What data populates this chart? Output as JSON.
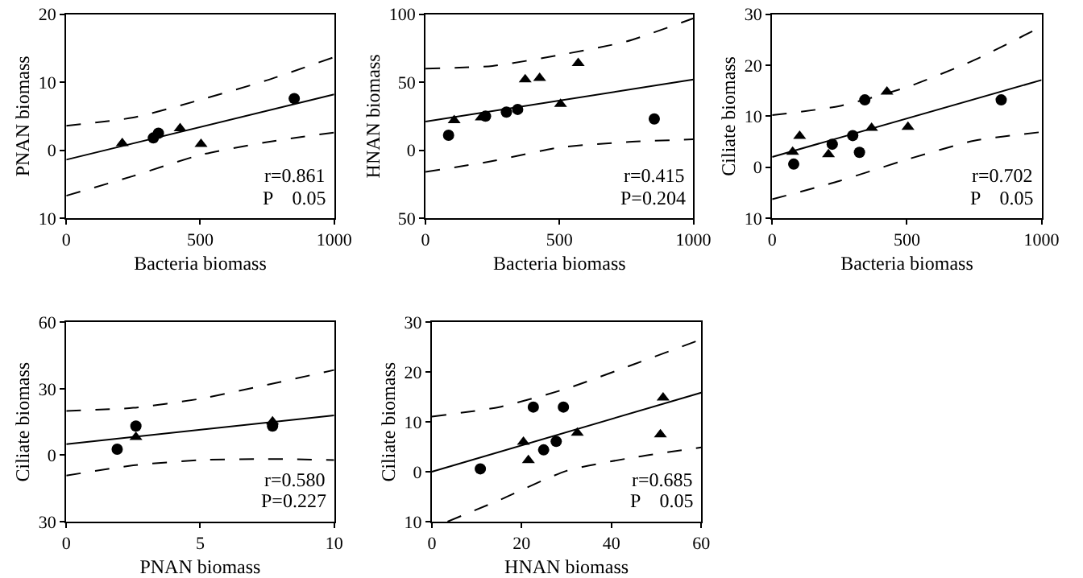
{
  "chart_data": [
    {
      "type": "scatter",
      "xlabel": "Bacteria biomass",
      "ylabel": "PNAN biomass",
      "xlim": [
        0,
        1000
      ],
      "xticks": [
        0,
        500,
        1000
      ],
      "ylim": [
        -10,
        20
      ],
      "yticks": [
        {
          "value": -10,
          "label": "10"
        },
        0,
        10,
        20
      ],
      "annotations": [
        "r=0.861",
        "P    0.05"
      ],
      "series": [
        {
          "type": "scatter",
          "marker": "circle",
          "color": "#000000",
          "x": [
            325,
            344,
            851
          ],
          "values": [
            1.8,
            2.5,
            7.6
          ]
        },
        {
          "type": "scatter",
          "marker": "triangle",
          "color": "#000000",
          "x": [
            209,
            425,
            503
          ],
          "values": [
            1.0,
            3.2,
            0.9
          ]
        },
        {
          "type": "line",
          "line_style": "solid",
          "color": "#000000",
          "x": [
            0,
            1000
          ],
          "values": [
            -1.4,
            8.2
          ]
        },
        {
          "type": "line",
          "line_style": "dashed",
          "color": "#000000",
          "x": [
            0,
            250,
            500,
            750,
            1000
          ],
          "values": [
            3.6,
            4.8,
            7.4,
            10.3,
            13.7
          ]
        },
        {
          "type": "line",
          "line_style": "dashed",
          "color": "#000000",
          "x": [
            0,
            250,
            500,
            750,
            1000
          ],
          "values": [
            -6.7,
            -3.8,
            -0.7,
            1.2,
            2.6
          ]
        }
      ]
    },
    {
      "type": "scatter",
      "xlabel": "Bacteria biomass",
      "ylabel": "HNAN biomass",
      "xlim": [
        0,
        1000
      ],
      "xticks": [
        0,
        500,
        1000
      ],
      "ylim": [
        -50,
        100
      ],
      "yticks": [
        {
          "value": -50,
          "label": "50"
        },
        0,
        50,
        100
      ],
      "annotations": [
        "r=0.415",
        "P=0.204"
      ],
      "series": [
        {
          "type": "scatter",
          "marker": "circle",
          "color": "#000000",
          "x": [
            86,
            224,
            302,
            344,
            854
          ],
          "values": [
            11,
            25,
            28,
            30,
            23
          ]
        },
        {
          "type": "scatter",
          "marker": "triangle",
          "color": "#000000",
          "x": [
            107,
            208,
            372,
            426,
            504,
            570
          ],
          "values": [
            22,
            24,
            52,
            53,
            34,
            64
          ]
        },
        {
          "type": "line",
          "line_style": "solid",
          "color": "#000000",
          "x": [
            0,
            1000
          ],
          "values": [
            21,
            52
          ]
        },
        {
          "type": "line",
          "line_style": "dashed",
          "color": "#000000",
          "x": [
            0,
            250,
            500,
            750,
            1000
          ],
          "values": [
            60,
            62,
            70,
            80,
            97
          ]
        },
        {
          "type": "line",
          "line_style": "dashed",
          "color": "#000000",
          "x": [
            0,
            250,
            500,
            750,
            1000
          ],
          "values": [
            -16,
            -8,
            2,
            6,
            8
          ]
        }
      ]
    },
    {
      "type": "scatter",
      "xlabel": "Bacteria biomass",
      "ylabel": "Ciliate biomass",
      "xlim": [
        0,
        1000
      ],
      "xticks": [
        0,
        500,
        1000
      ],
      "ylim": [
        -10,
        30
      ],
      "yticks": [
        {
          "value": -10,
          "label": "10"
        },
        0,
        10,
        20,
        30
      ],
      "annotations": [
        "r=0.702",
        "P    0.05"
      ],
      "series": [
        {
          "type": "scatter",
          "marker": "circle",
          "color": "#000000",
          "x": [
            80,
            223,
            299,
            324,
            344,
            850
          ],
          "values": [
            0.6,
            4.5,
            6.2,
            2.9,
            13.2,
            13.2
          ]
        },
        {
          "type": "scatter",
          "marker": "triangle",
          "color": "#000000",
          "x": [
            76,
            102,
            209,
            369,
            426,
            504
          ],
          "values": [
            3.0,
            6.1,
            2.5,
            7.7,
            14.8,
            7.9
          ]
        },
        {
          "type": "line",
          "line_style": "solid",
          "color": "#000000",
          "x": [
            0,
            1000
          ],
          "values": [
            2.0,
            17.1
          ]
        },
        {
          "type": "line",
          "line_style": "dashed",
          "color": "#000000",
          "x": [
            0,
            250,
            500,
            750,
            1000
          ],
          "values": [
            10.2,
            12,
            15.7,
            21,
            27.6
          ]
        },
        {
          "type": "line",
          "line_style": "dashed",
          "color": "#000000",
          "x": [
            0,
            250,
            500,
            750,
            1000
          ],
          "values": [
            -6.3,
            -2.7,
            1.5,
            5.2,
            6.9
          ]
        }
      ]
    },
    {
      "type": "scatter",
      "xlabel": "PNAN biomass",
      "ylabel": "Ciliate biomass",
      "xlim": [
        0,
        10
      ],
      "xticks": [
        0,
        5,
        10
      ],
      "ylim": [
        -30,
        60
      ],
      "yticks": [
        {
          "value": -30,
          "label": "30"
        },
        0,
        30,
        60
      ],
      "annotations": [
        "r=0.580",
        "P=0.227"
      ],
      "series": [
        {
          "type": "scatter",
          "marker": "circle",
          "color": "#000000",
          "x": [
            1.9,
            2.6,
            7.7
          ],
          "values": [
            2.7,
            13.2,
            13.2
          ]
        },
        {
          "type": "scatter",
          "marker": "triangle",
          "color": "#000000",
          "x": [
            2.6,
            7.7
          ],
          "values": [
            8.2,
            15.2
          ]
        },
        {
          "type": "line",
          "line_style": "solid",
          "color": "#000000",
          "x": [
            0,
            10
          ],
          "values": [
            5,
            18
          ]
        },
        {
          "type": "line",
          "line_style": "dashed",
          "color": "#000000",
          "x": [
            0,
            2.5,
            5,
            7.5,
            10
          ],
          "values": [
            20,
            21.4,
            25.5,
            31.8,
            38.5
          ]
        },
        {
          "type": "line",
          "line_style": "dashed",
          "color": "#000000",
          "x": [
            0,
            2.5,
            5,
            7.5,
            10
          ],
          "values": [
            -9.2,
            -4.6,
            -2.2,
            -1.7,
            -2.2
          ]
        }
      ]
    },
    {
      "type": "scatter",
      "xlabel": "HNAN biomass",
      "ylabel": "Ciliate biomass",
      "xlim": [
        0,
        60
      ],
      "xticks": [
        0,
        20,
        40,
        60
      ],
      "ylim": [
        -10,
        30
      ],
      "yticks": [
        {
          "value": -10,
          "label": "10"
        },
        0,
        10,
        20,
        30
      ],
      "annotations": [
        "r=0.685",
        "P    0.05"
      ],
      "series": [
        {
          "type": "scatter",
          "marker": "circle",
          "color": "#000000",
          "x": [
            10.8,
            22.6,
            24.9,
            27.7,
            29.3
          ],
          "values": [
            0.6,
            13.0,
            4.4,
            6.1,
            13.0
          ]
        },
        {
          "type": "scatter",
          "marker": "triangle",
          "color": "#000000",
          "x": [
            20.4,
            21.5,
            32.4,
            50.9,
            51.5
          ],
          "values": [
            6.0,
            2.3,
            7.8,
            7.5,
            14.9
          ]
        },
        {
          "type": "line",
          "line_style": "solid",
          "color": "#000000",
          "x": [
            0,
            60
          ],
          "values": [
            0,
            15.9
          ]
        },
        {
          "type": "line",
          "line_style": "dashed",
          "color": "#000000",
          "x": [
            0,
            15,
            30,
            45,
            60
          ],
          "values": [
            11.1,
            13,
            16.7,
            21.6,
            26.6
          ]
        },
        {
          "type": "line",
          "line_style": "dashed",
          "color": "#000000",
          "x": [
            3.5,
            15,
            30,
            45,
            60
          ],
          "values": [
            -10,
            -5.7,
            0.2,
            2.9,
            4.9
          ]
        }
      ]
    }
  ]
}
